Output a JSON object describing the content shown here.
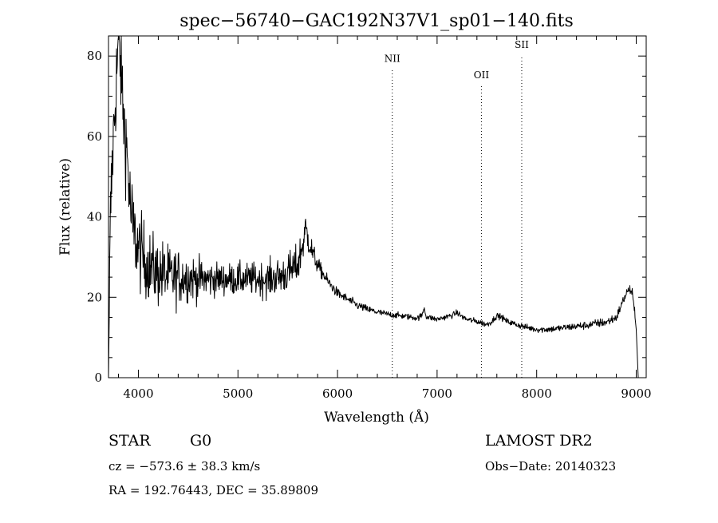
{
  "chart_data": {
    "type": "line",
    "title": "spec−56740−GAC192N37V1_sp01−140.fits",
    "xlabel": "Wavelength (Å)",
    "ylabel": "Flux (relative)",
    "xlim": [
      3700,
      9100
    ],
    "ylim": [
      0,
      85
    ],
    "xticks": [
      4000,
      5000,
      6000,
      7000,
      8000,
      9000
    ],
    "yticks": [
      0,
      20,
      40,
      60,
      80
    ],
    "grid": false,
    "series": [
      {
        "name": "",
        "envelope": {
          "x": [
            3700,
            3720,
            3740,
            3760,
            3780,
            3800,
            3820,
            3840,
            3860,
            3880,
            3900,
            3920,
            3940,
            3960,
            3980,
            4000,
            4050,
            4100,
            4150,
            4200,
            4250,
            4300,
            4350,
            4400,
            4450,
            4500,
            4600,
            4700,
            4800,
            4900,
            5000,
            5100,
            5200,
            5300,
            5400,
            5500,
            5600,
            5650,
            5680,
            5700,
            5750,
            5800,
            5850,
            5900,
            6000,
            6100,
            6200,
            6300,
            6400,
            6500,
            6600,
            6700,
            6800,
            6850,
            6870,
            6890,
            6950,
            7000,
            7100,
            7150,
            7200,
            7250,
            7300,
            7400,
            7500,
            7550,
            7600,
            7650,
            7700,
            7800,
            7900,
            8000,
            8100,
            8200,
            8300,
            8400,
            8500,
            8600,
            8700,
            8800,
            8850,
            8900,
            8930,
            8960,
            8980,
            9000,
            9010,
            9020
          ],
          "y": [
            0,
            40,
            55,
            65,
            75,
            84,
            78,
            70,
            62,
            58,
            50,
            42,
            38,
            35,
            34,
            32,
            30,
            28,
            27,
            26,
            26,
            25,
            25,
            25,
            25,
            25,
            24.5,
            24.5,
            24.5,
            24.5,
            24.5,
            24.5,
            24.5,
            24.5,
            25,
            26,
            28,
            33,
            37,
            35,
            31,
            28,
            26,
            24,
            21,
            19.5,
            18,
            17,
            16.3,
            15.8,
            15.5,
            15.2,
            14.8,
            15.5,
            17.5,
            15.2,
            14.8,
            14.5,
            15.2,
            15.5,
            16.2,
            15.2,
            14.5,
            14,
            13.2,
            14,
            15.5,
            15,
            14,
            13.2,
            12.5,
            12,
            12,
            12.2,
            12.5,
            12.8,
            13,
            13.5,
            13.8,
            15,
            18,
            21,
            22,
            21,
            17,
            12,
            6,
            0
          ]
        },
        "noise_sigma": {
          "x": [
            3700,
            3900,
            4000,
            4100,
            4300,
            4500,
            4800,
            5100,
            5500,
            5650,
            5800,
            6000,
            6500,
            7000,
            8000,
            8500,
            8800,
            9000
          ],
          "y": [
            6,
            6,
            5,
            4.5,
            4,
            3,
            2,
            2,
            2.5,
            2.5,
            1,
            0.6,
            0.4,
            0.35,
            0.4,
            0.5,
            0.6,
            0.6
          ]
        }
      }
    ],
    "line_markers": [
      {
        "label": "NII",
        "x": 6550,
        "label_y": 78.5
      },
      {
        "label": "OII",
        "x": 7445,
        "label_y": 74.5
      },
      {
        "label": "SII",
        "x": 7850,
        "label_y": 82
      }
    ]
  },
  "info": {
    "object_class": "STAR",
    "subclass": "G0",
    "survey": "LAMOST DR2",
    "cz": "cz = −573.6 ± 38.3 km/s",
    "obs_date": "Obs−Date: 20140323",
    "coords": "RA = 192.76443, DEC =  35.89809"
  }
}
